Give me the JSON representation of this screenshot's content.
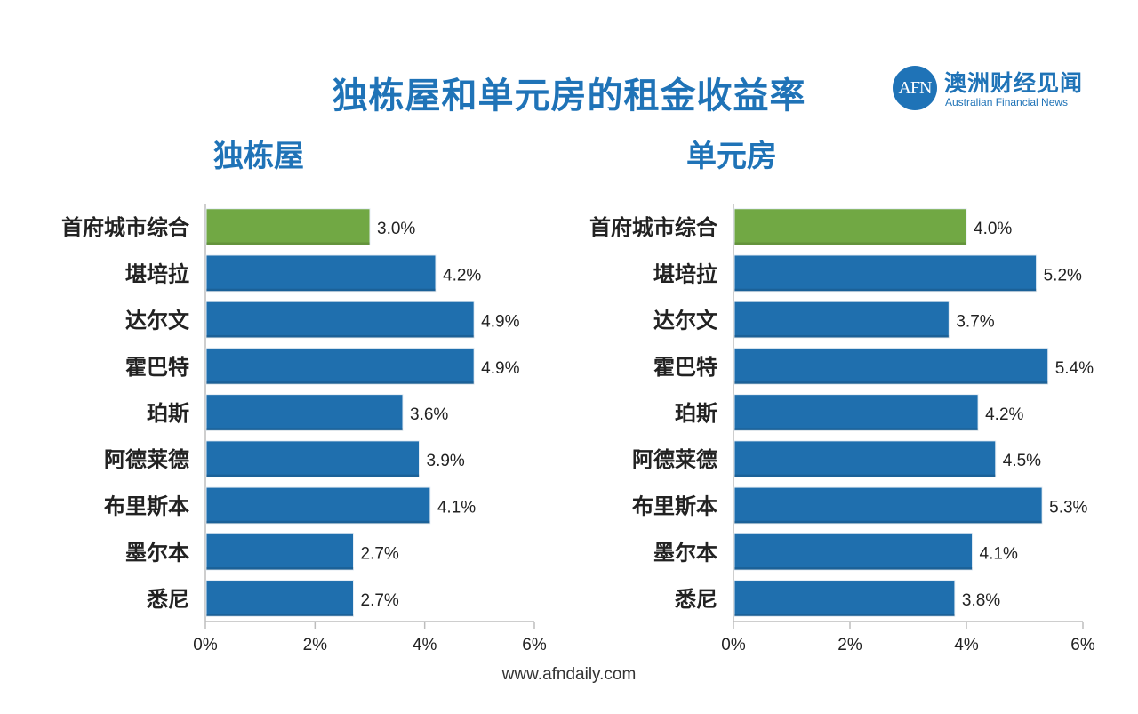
{
  "title": "独栋屋和单元房的租金收益率",
  "logo": {
    "mark": "AFN",
    "cn_name": "澳洲财经见闻",
    "en_name": "Australian Financial News"
  },
  "footer": "www.afndaily.com",
  "colors": {
    "title": "#1f73b7",
    "highlight_bar": "#71a844",
    "bar": "#1f6fae"
  },
  "chart_data": [
    {
      "type": "bar",
      "orientation": "horizontal",
      "title": "独栋屋",
      "categories": [
        "首府城市综合",
        "堪培拉",
        "达尔文",
        "霍巴特",
        "珀斯",
        "阿德莱德",
        "布里斯本",
        "墨尔本",
        "悉尼"
      ],
      "values": [
        3.0,
        4.2,
        4.9,
        4.9,
        3.6,
        3.9,
        4.1,
        2.7,
        2.7
      ],
      "value_labels": [
        "3.0%",
        "4.2%",
        "4.9%",
        "4.9%",
        "3.6%",
        "3.9%",
        "4.1%",
        "2.7%",
        "2.7%"
      ],
      "highlight_index": 0,
      "xlim": [
        0,
        6
      ],
      "xticks": [
        0,
        2,
        4,
        6
      ],
      "xtick_labels": [
        "0%",
        "2%",
        "4%",
        "6%"
      ],
      "xlabel": "",
      "ylabel": ""
    },
    {
      "type": "bar",
      "orientation": "horizontal",
      "title": "单元房",
      "categories": [
        "首府城市综合",
        "堪培拉",
        "达尔文",
        "霍巴特",
        "珀斯",
        "阿德莱德",
        "布里斯本",
        "墨尔本",
        "悉尼"
      ],
      "values": [
        4.0,
        5.2,
        3.7,
        5.4,
        4.2,
        4.5,
        5.3,
        4.1,
        3.8
      ],
      "value_labels": [
        "4.0%",
        "5.2%",
        "3.7%",
        "5.4%",
        "4.2%",
        "4.5%",
        "5.3%",
        "4.1%",
        "3.8%"
      ],
      "highlight_index": 0,
      "xlim": [
        0,
        6
      ],
      "xticks": [
        0,
        2,
        4,
        6
      ],
      "xtick_labels": [
        "0%",
        "2%",
        "4%",
        "6%"
      ],
      "xlabel": "",
      "ylabel": ""
    }
  ]
}
